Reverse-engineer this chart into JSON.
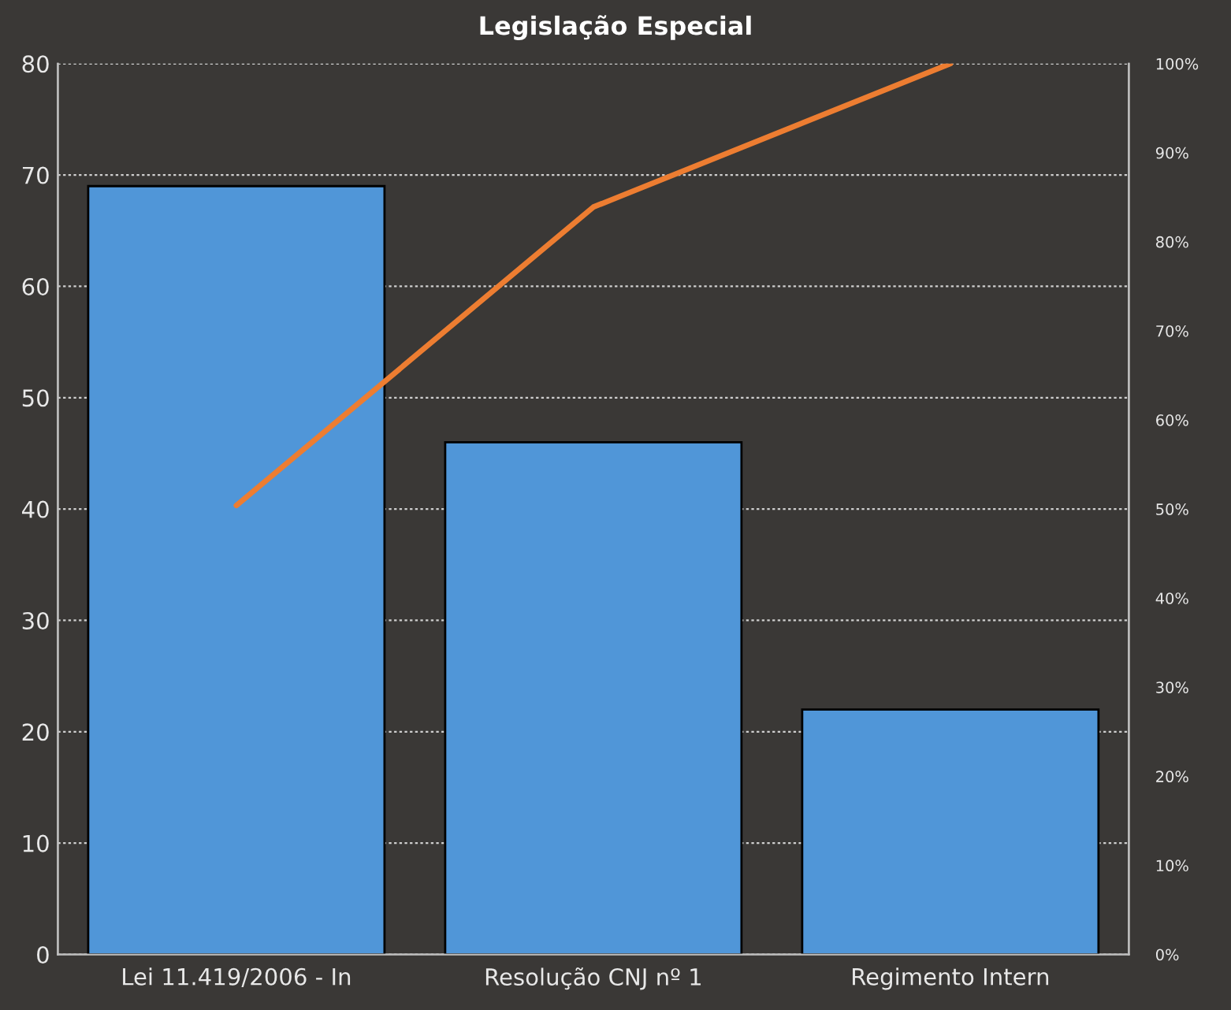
{
  "chart_data": {
    "type": "bar",
    "title": "Legislação Especial",
    "categories": [
      "Lei 11.419/2006 - In",
      "Resolução CNJ nº 1",
      "Regimento Intern"
    ],
    "series": [
      {
        "color": "#5096d8",
        "values": [
          69,
          46,
          22
        ]
      },
      {
        "type": "line",
        "axis": "y2",
        "color": "#ed7d31",
        "values": [
          50.4,
          83.9,
          100
        ]
      }
    ],
    "ylim": [
      0,
      80
    ],
    "yticks": [
      0,
      10,
      20,
      30,
      40,
      50,
      60,
      70,
      80
    ],
    "y2lim": [
      0,
      100
    ],
    "y2ticks": [
      {
        "value": 0,
        "label": "0%"
      },
      {
        "value": 10,
        "label": "10%"
      },
      {
        "value": 20,
        "label": "20%"
      },
      {
        "value": 30,
        "label": "30%"
      },
      {
        "value": 40,
        "label": "40%"
      },
      {
        "value": 50,
        "label": "50%"
      },
      {
        "value": 60,
        "label": "60%"
      },
      {
        "value": 70,
        "label": "70%"
      },
      {
        "value": 80,
        "label": "80%"
      },
      {
        "value": 90,
        "label": "90%"
      },
      {
        "value": 100,
        "label": "100%"
      }
    ],
    "grid": "y",
    "marker": "none",
    "line_style": "solid"
  }
}
